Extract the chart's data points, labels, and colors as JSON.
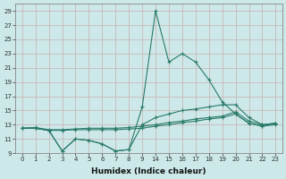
{
  "xlabel": "Humidex (Indice chaleur)",
  "bg_color": "#cce8e8",
  "grid_color": "#c8b8b8",
  "line_color": "#2a7a6a",
  "xlabels": [
    "0",
    "1",
    "2",
    "3",
    "4",
    "5",
    "6",
    "7",
    "8",
    "9",
    "14",
    "15",
    "16",
    "17",
    "18",
    "19",
    "20",
    "21",
    "22",
    "23"
  ],
  "line1_y": [
    12.5,
    12.5,
    12.2,
    9.3,
    11.0,
    10.8,
    10.3,
    9.3,
    9.5,
    15.5,
    29.0,
    21.8,
    23.0,
    21.8,
    19.3,
    16.2,
    14.5,
    13.2,
    12.8,
    13.2
  ],
  "line2_y": [
    12.5,
    12.5,
    12.2,
    9.3,
    11.0,
    10.8,
    10.3,
    9.3,
    9.5,
    13.0,
    14.0,
    14.5,
    15.0,
    15.2,
    15.5,
    15.8,
    15.8,
    14.0,
    13.0,
    13.2
  ],
  "line3_y": [
    12.5,
    12.6,
    12.3,
    12.3,
    12.4,
    12.5,
    12.5,
    12.5,
    12.6,
    12.8,
    13.0,
    13.3,
    13.5,
    13.8,
    14.0,
    14.2,
    14.8,
    13.5,
    13.0,
    13.2
  ],
  "line4_y": [
    12.5,
    12.5,
    12.2,
    12.2,
    12.3,
    12.3,
    12.3,
    12.3,
    12.4,
    12.5,
    12.8,
    13.0,
    13.3,
    13.5,
    13.8,
    14.0,
    14.5,
    13.2,
    12.8,
    13.0
  ],
  "ylim": [
    9,
    30
  ],
  "yticks": [
    9,
    11,
    13,
    15,
    17,
    19,
    21,
    23,
    25,
    27,
    29
  ]
}
